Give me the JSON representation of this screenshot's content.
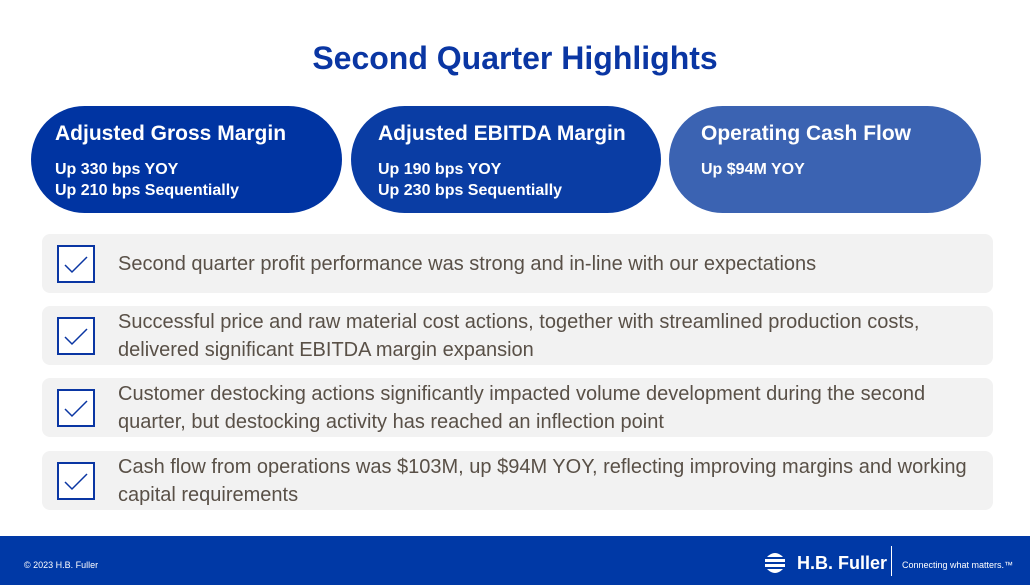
{
  "title": "Second Quarter Highlights",
  "pills": [
    {
      "heading": "Adjusted Gross Margin",
      "lines": [
        "Up 330 bps YOY",
        "Up 210 bps Sequentially"
      ]
    },
    {
      "heading": "Adjusted EBITDA Margin",
      "lines": [
        "Up 190 bps YOY",
        "Up 230 bps Sequentially"
      ]
    },
    {
      "heading": "Operating Cash Flow",
      "lines": [
        "Up $94M YOY"
      ]
    }
  ],
  "bullets": [
    "Second quarter profit performance was strong and in-line with our expectations",
    "Successful price and raw material cost actions, together with streamlined production costs, delivered significant EBITDA margin expansion",
    "Customer destocking actions significantly impacted volume development during the second quarter, but destocking activity has reached an inflection point",
    "Cash flow from operations was $103M, up $94M YOY, reflecting improving margins and working capital requirements"
  ],
  "footer": {
    "copyright": "© 2023 H.B. Fuller",
    "brand": "H.B. Fuller",
    "tagline": "Connecting what matters.™"
  }
}
